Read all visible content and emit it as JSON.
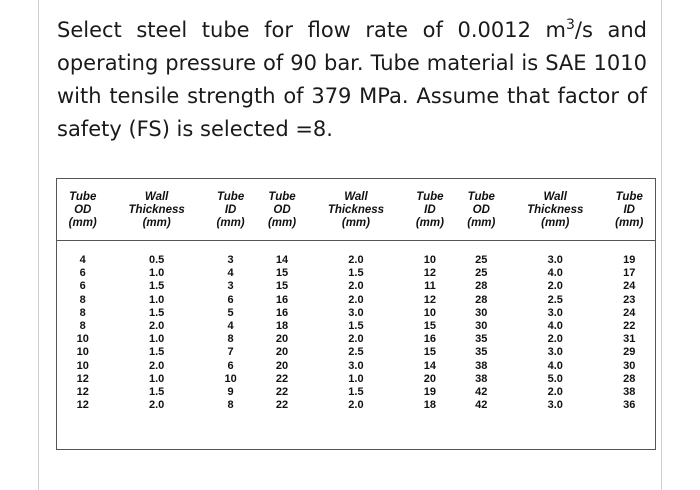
{
  "question": {
    "part1": "Select steel tube for flow rate of 0.0012 m",
    "sup": "3",
    "part2": "/s and operating pressure of 90 bar. Tube material is SAE 1010 with tensile strength of 379 MPa. Assume that factor of safety (FS) is selected =8."
  },
  "table": {
    "headers": [
      [
        "Tube",
        "OD",
        "(mm)"
      ],
      [
        "Wall",
        "Thickness",
        "(mm)"
      ],
      [
        "Tube",
        "ID",
        "(mm)"
      ],
      [
        "Tube",
        "OD",
        "(mm)"
      ],
      [
        "Wall",
        "Thickness",
        "(mm)"
      ],
      [
        "Tube",
        "ID",
        "(mm)"
      ],
      [
        "Tube",
        "OD",
        "(mm)"
      ],
      [
        "Wall",
        "Thickness",
        "(mm)"
      ],
      [
        "Tube",
        "ID",
        "(mm)"
      ]
    ],
    "rows": [
      [
        "4",
        "0.5",
        "3",
        "14",
        "2.0",
        "10",
        "25",
        "3.0",
        "19"
      ],
      [
        "6",
        "1.0",
        "4",
        "15",
        "1.5",
        "12",
        "25",
        "4.0",
        "17"
      ],
      [
        "6",
        "1.5",
        "3",
        "15",
        "2.0",
        "11",
        "28",
        "2.0",
        "24"
      ],
      [
        "8",
        "1.0",
        "6",
        "16",
        "2.0",
        "12",
        "28",
        "2.5",
        "23"
      ],
      [
        "8",
        "1.5",
        "5",
        "16",
        "3.0",
        "10",
        "30",
        "3.0",
        "24"
      ],
      [
        "8",
        "2.0",
        "4",
        "18",
        "1.5",
        "15",
        "30",
        "4.0",
        "22"
      ],
      [
        "10",
        "1.0",
        "8",
        "20",
        "2.0",
        "16",
        "35",
        "2.0",
        "31"
      ],
      [
        "10",
        "1.5",
        "7",
        "20",
        "2.5",
        "15",
        "35",
        "3.0",
        "29"
      ],
      [
        "10",
        "2.0",
        "6",
        "20",
        "3.0",
        "14",
        "38",
        "4.0",
        "30"
      ],
      [
        "12",
        "1.0",
        "10",
        "22",
        "1.0",
        "20",
        "38",
        "5.0",
        "28"
      ],
      [
        "12",
        "1.5",
        "9",
        "22",
        "1.5",
        "19",
        "42",
        "2.0",
        "38"
      ],
      [
        "12",
        "2.0",
        "8",
        "22",
        "2.0",
        "18",
        "42",
        "3.0",
        "36"
      ]
    ]
  }
}
